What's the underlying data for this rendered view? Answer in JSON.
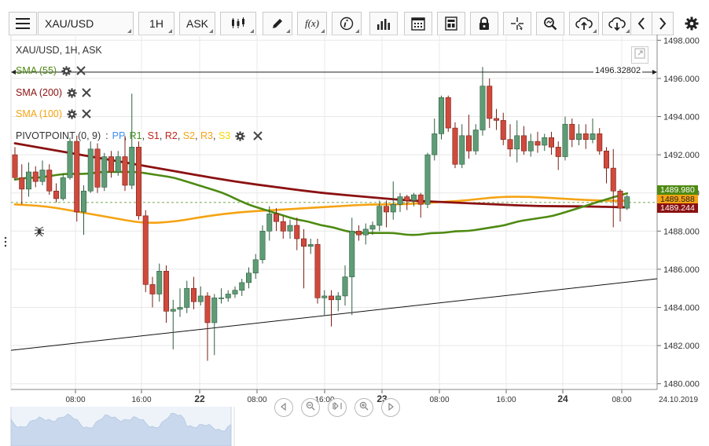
{
  "toolbar": {
    "menu_icon": "hamburger-icon",
    "symbol": "XAU/USD",
    "timeframe": "1H",
    "price_type": "ASK",
    "buttons": [
      "candle-type-icon",
      "drawing-pen-icon",
      "function-icon",
      "info-icon",
      "bar-indicator-icon",
      "calendar-icon",
      "layout-icon",
      "lock-icon",
      "crosshair-icon",
      "zoom-icon",
      "cloud-upload-icon",
      "cloud-download-icon",
      "chevron-left-icon",
      "chevron-right-icon",
      "gear-icon"
    ],
    "fx_label": "f(x)"
  },
  "legend": {
    "title": "XAU/USD, 1H, ASK",
    "sma55": "SMA (55)",
    "sma200": "SMA (200)",
    "sma100": "SMA (100)",
    "pivot_label": "PIVOTPOINT (0, 9)",
    "pivot_sep": ":",
    "pivot_items": [
      {
        "text": "PP",
        "color": "#3d8ff2"
      },
      {
        "text": "R1",
        "color": "#3f8f1f"
      },
      {
        "text": "S1",
        "color": "#c0241c"
      },
      {
        "text": "R2",
        "color": "#c0241c"
      },
      {
        "text": "S2",
        "color": "#f5a313"
      },
      {
        "text": "R3",
        "color": "#f5a313"
      },
      {
        "text": "S3",
        "color": "#f5d700"
      }
    ]
  },
  "colors": {
    "up": "#5e9c76",
    "down": "#cf4a3c",
    "sma55": "#4e8a12",
    "sma200": "#8b1111",
    "sma100": "#f5a313",
    "grid": "#e8e8e8"
  },
  "hline_label": "1496.32802",
  "price_labels": {
    "sma100": "1489.588",
    "sma200": "1489.244",
    "sma55": "1489.980"
  },
  "chart_data": {
    "type": "candlestick",
    "y_ticks": [
      "1480.000",
      "1482.000",
      "1484.000",
      "1486.000",
      "1488.000",
      "1490.000",
      "1492.000",
      "1494.000",
      "1496.000",
      "1498.000"
    ],
    "ylim": [
      1479.7,
      1498.3
    ],
    "x_ticks": [
      {
        "label": "08:00",
        "bold": false
      },
      {
        "label": "16:00",
        "bold": false
      },
      {
        "label": "22",
        "bold": true
      },
      {
        "label": "08:00",
        "bold": false
      },
      {
        "label": "16:00",
        "bold": false
      },
      {
        "label": "23",
        "bold": true
      },
      {
        "label": "08:00",
        "bold": false
      },
      {
        "label": "16:00",
        "bold": false
      },
      {
        "label": "24",
        "bold": true
      },
      {
        "label": "08:00",
        "bold": false
      },
      {
        "label": "24.10.2019",
        "bold": false
      }
    ],
    "candles": [
      [
        1492.0,
        1490.8,
        1490.7,
        1492.4
      ],
      [
        1490.8,
        1490.2,
        1489.4,
        1491.5
      ],
      [
        1490.2,
        1491.1,
        1489.8,
        1491.6
      ],
      [
        1491.1,
        1490.6,
        1490.3,
        1491.4
      ],
      [
        1490.6,
        1491.2,
        1490.4,
        1491.7
      ],
      [
        1491.2,
        1490.1,
        1489.9,
        1491.5
      ],
      [
        1490.1,
        1489.7,
        1489.5,
        1490.5
      ],
      [
        1489.7,
        1490.8,
        1489.6,
        1491.0
      ],
      [
        1490.8,
        1492.7,
        1490.7,
        1492.9
      ],
      [
        1492.7,
        1489.0,
        1488.5,
        1493.0
      ],
      [
        1489.0,
        1490.1,
        1487.8,
        1490.4
      ],
      [
        1490.1,
        1492.3,
        1490.0,
        1492.7
      ],
      [
        1492.3,
        1490.3,
        1490.0,
        1492.6
      ],
      [
        1490.3,
        1491.9,
        1490.1,
        1492.1
      ],
      [
        1491.9,
        1491.1,
        1490.8,
        1492.2
      ],
      [
        1491.1,
        1491.9,
        1490.9,
        1492.2
      ],
      [
        1491.9,
        1490.4,
        1490.1,
        1493.0
      ],
      [
        1490.4,
        1492.4,
        1490.2,
        1495.2
      ],
      [
        1492.4,
        1488.8,
        1488.6,
        1492.7
      ],
      [
        1488.8,
        1485.2,
        1484.8,
        1489.1
      ],
      [
        1485.2,
        1484.7,
        1484.0,
        1485.6
      ],
      [
        1484.7,
        1485.9,
        1484.3,
        1486.3
      ],
      [
        1485.9,
        1483.8,
        1483.2,
        1486.2
      ],
      [
        1483.8,
        1483.9,
        1481.8,
        1484.4
      ],
      [
        1483.9,
        1484.0,
        1483.5,
        1485.0
      ],
      [
        1484.0,
        1485.0,
        1483.7,
        1485.4
      ],
      [
        1485.0,
        1484.3,
        1483.9,
        1485.6
      ],
      [
        1484.3,
        1484.6,
        1484.1,
        1485.1
      ],
      [
        1484.6,
        1483.2,
        1481.2,
        1484.8
      ],
      [
        1483.2,
        1484.5,
        1481.5,
        1484.7
      ],
      [
        1484.5,
        1484.5,
        1484.2,
        1485.0
      ],
      [
        1484.5,
        1484.7,
        1484.3,
        1484.9
      ],
      [
        1484.7,
        1484.9,
        1484.5,
        1485.1
      ],
      [
        1484.9,
        1485.3,
        1484.6,
        1485.5
      ],
      [
        1485.3,
        1485.8,
        1485.0,
        1486.1
      ],
      [
        1485.8,
        1486.5,
        1485.5,
        1486.8
      ],
      [
        1486.5,
        1488.0,
        1486.3,
        1488.3
      ],
      [
        1488.0,
        1488.9,
        1487.5,
        1489.3
      ],
      [
        1488.9,
        1488.5,
        1488.0,
        1489.2
      ],
      [
        1488.5,
        1488.0,
        1487.6,
        1488.8
      ],
      [
        1488.0,
        1488.3,
        1487.6,
        1488.6
      ],
      [
        1488.3,
        1487.6,
        1487.0,
        1488.7
      ],
      [
        1487.6,
        1487.2,
        1485.0,
        1488.1
      ],
      [
        1487.2,
        1487.3,
        1486.8,
        1487.6
      ],
      [
        1487.3,
        1484.5,
        1484.2,
        1487.6
      ],
      [
        1484.5,
        1484.6,
        1483.6,
        1484.9
      ],
      [
        1484.6,
        1484.4,
        1483.0,
        1484.9
      ],
      [
        1484.4,
        1484.6,
        1483.8,
        1484.8
      ],
      [
        1484.6,
        1485.6,
        1484.1,
        1486.2
      ],
      [
        1485.6,
        1488.0,
        1483.6,
        1488.7
      ],
      [
        1488.0,
        1487.8,
        1487.5,
        1488.3
      ],
      [
        1487.8,
        1488.1,
        1487.3,
        1488.4
      ],
      [
        1488.1,
        1488.3,
        1487.8,
        1488.5
      ],
      [
        1488.3,
        1489.3,
        1488.0,
        1489.6
      ],
      [
        1489.3,
        1489.0,
        1488.2,
        1489.6
      ],
      [
        1489.0,
        1489.4,
        1488.6,
        1490.6
      ],
      [
        1489.4,
        1489.8,
        1489.0,
        1490.0
      ],
      [
        1489.8,
        1489.6,
        1489.1,
        1489.9
      ],
      [
        1489.6,
        1489.9,
        1489.3,
        1490.0
      ],
      [
        1489.9,
        1489.4,
        1488.7,
        1490.0
      ],
      [
        1489.4,
        1492.0,
        1489.2,
        1492.1
      ],
      [
        1492.0,
        1493.1,
        1491.7,
        1493.9
      ],
      [
        1493.1,
        1495.0,
        1492.8,
        1495.1
      ],
      [
        1495.0,
        1493.4,
        1493.2,
        1495.1
      ],
      [
        1493.4,
        1491.5,
        1491.3,
        1493.7
      ],
      [
        1491.5,
        1493.0,
        1491.3,
        1493.6
      ],
      [
        1493.0,
        1492.2,
        1491.8,
        1494.1
      ],
      [
        1492.2,
        1493.3,
        1492.0,
        1493.6
      ],
      [
        1493.3,
        1495.6,
        1493.0,
        1496.6
      ],
      [
        1495.6,
        1493.9,
        1493.4,
        1496.0
      ],
      [
        1493.9,
        1493.8,
        1493.3,
        1494.4
      ],
      [
        1493.8,
        1492.8,
        1492.5,
        1494.2
      ],
      [
        1492.8,
        1492.3,
        1491.9,
        1493.6
      ],
      [
        1492.3,
        1493.0,
        1491.6,
        1493.8
      ],
      [
        1493.0,
        1492.2,
        1492.0,
        1493.5
      ],
      [
        1492.2,
        1492.7,
        1491.9,
        1493.1
      ],
      [
        1492.7,
        1492.5,
        1492.1,
        1493.2
      ],
      [
        1492.5,
        1492.9,
        1492.2,
        1493.1
      ],
      [
        1492.9,
        1492.4,
        1492.0,
        1493.2
      ],
      [
        1492.4,
        1491.9,
        1491.2,
        1492.7
      ],
      [
        1491.9,
        1493.6,
        1491.7,
        1494.0
      ],
      [
        1493.6,
        1492.8,
        1492.4,
        1493.9
      ],
      [
        1492.8,
        1493.1,
        1492.5,
        1493.6
      ],
      [
        1493.1,
        1492.8,
        1492.3,
        1493.6
      ],
      [
        1492.8,
        1493.1,
        1492.6,
        1493.9
      ],
      [
        1493.1,
        1492.2,
        1492.0,
        1493.4
      ],
      [
        1492.2,
        1491.3,
        1490.5,
        1492.4
      ],
      [
        1491.3,
        1490.1,
        1488.2,
        1492.3
      ],
      [
        1490.1,
        1489.2,
        1488.5,
        1490.2
      ],
      [
        1489.2,
        1489.8,
        1489.1,
        1489.9
      ]
    ],
    "sma55": [
      1490.7,
      1490.8,
      1490.8,
      1490.9,
      1491.0,
      1491.0,
      1491.0,
      1491.1,
      1491.1,
      1491.1,
      1491.1,
      1491.0,
      1490.9,
      1490.8,
      1490.6,
      1490.4,
      1490.2,
      1490.0,
      1489.7,
      1489.4,
      1489.2,
      1489.0,
      1488.8,
      1488.6,
      1488.5,
      1488.3,
      1488.2,
      1488.0,
      1487.9,
      1487.9,
      1487.9,
      1487.9,
      1487.8,
      1487.8,
      1487.9,
      1487.9,
      1488.0,
      1488.0,
      1488.1,
      1488.2,
      1488.3,
      1488.5,
      1488.6,
      1488.7,
      1488.8,
      1489.0,
      1489.2,
      1489.4,
      1489.6,
      1489.8,
      1489.98
    ],
    "sma200": [
      1492.6,
      1492.2,
      1491.8,
      1491.4,
      1491.0,
      1490.6,
      1490.3,
      1490.0,
      1489.8,
      1489.6,
      1489.5,
      1489.4,
      1489.3,
      1489.3,
      1489.244
    ],
    "sma100": [
      1489.4,
      1489.3,
      1489.0,
      1488.7,
      1488.4,
      1488.5,
      1488.8,
      1489.0,
      1489.1,
      1489.2,
      1489.3,
      1489.4,
      1489.4,
      1489.5,
      1489.6,
      1489.8,
      1489.8,
      1489.7,
      1489.6,
      1489.588
    ],
    "pivot_line_y": 1489.5,
    "hline_y": 1496.32802,
    "trendline": {
      "from": [
        0,
        1481.75
      ],
      "to": [
        1,
        1485.5
      ]
    }
  }
}
